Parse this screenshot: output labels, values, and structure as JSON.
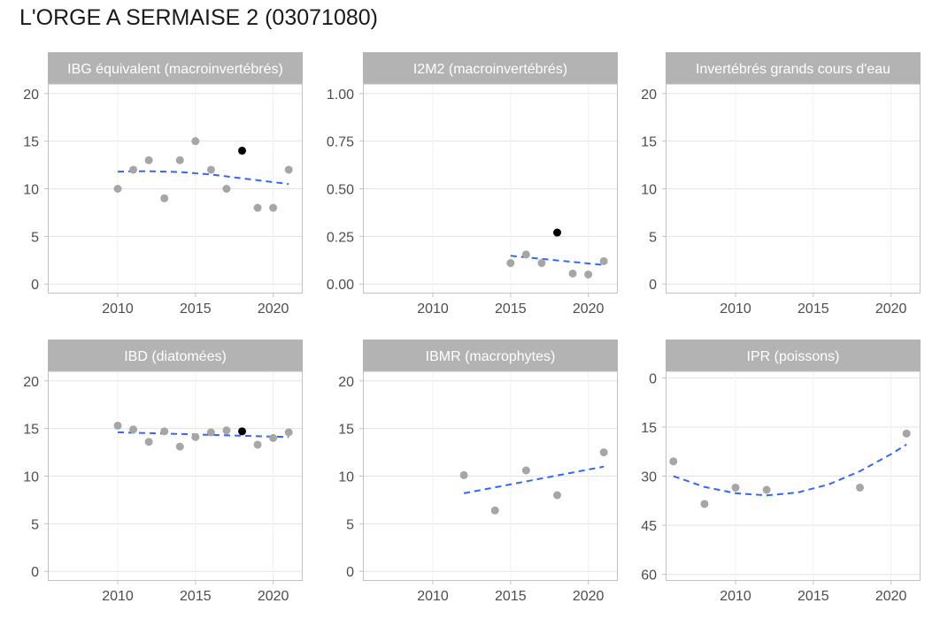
{
  "page": {
    "title": "L'ORGE A SERMAISE 2 (03071080)"
  },
  "chart_data": [
    {
      "type": "scatter",
      "title": "IBG équivalent (macroinvertébrés)",
      "xlim": [
        2005.5,
        2021.9
      ],
      "ylim": [
        -1,
        21
      ],
      "xticks": [
        2010,
        2015,
        2020
      ],
      "yticks": [
        0,
        5,
        10,
        15,
        20
      ],
      "ytick_labels": [
        "0",
        "5",
        "10",
        "15",
        "20"
      ],
      "reverse_y": false,
      "grid": true,
      "points": [
        {
          "x": 2010,
          "y": 10
        },
        {
          "x": 2011,
          "y": 12
        },
        {
          "x": 2012,
          "y": 13
        },
        {
          "x": 2013,
          "y": 9
        },
        {
          "x": 2014,
          "y": 13
        },
        {
          "x": 2015,
          "y": 15
        },
        {
          "x": 2016,
          "y": 12
        },
        {
          "x": 2017,
          "y": 10
        },
        {
          "x": 2018,
          "y": 14,
          "highlight": true
        },
        {
          "x": 2019,
          "y": 8
        },
        {
          "x": 2020,
          "y": 8
        },
        {
          "x": 2021,
          "y": 12
        }
      ],
      "trend": [
        {
          "x": 2010,
          "y": 11.8
        },
        {
          "x": 2012,
          "y": 11.85
        },
        {
          "x": 2014,
          "y": 11.75
        },
        {
          "x": 2016,
          "y": 11.5
        },
        {
          "x": 2018,
          "y": 11.1
        },
        {
          "x": 2020,
          "y": 10.7
        },
        {
          "x": 2021,
          "y": 10.5
        }
      ],
      "colors": {
        "point": "#a6a6a6",
        "highlight": "#000000",
        "trend": "#3366ff"
      }
    },
    {
      "type": "scatter",
      "title": "I2M2 (macroinvertébrés)",
      "xlim": [
        2005.5,
        2021.9
      ],
      "ylim": [
        -0.05,
        1.05
      ],
      "xticks": [
        2010,
        2015,
        2020
      ],
      "yticks": [
        0,
        0.25,
        0.5,
        0.75,
        1
      ],
      "ytick_labels": [
        "0.00",
        "0.25",
        "0.50",
        "0.75",
        "1.00"
      ],
      "reverse_y": false,
      "grid": true,
      "points": [
        {
          "x": 2015,
          "y": 0.11
        },
        {
          "x": 2016,
          "y": 0.155
        },
        {
          "x": 2017,
          "y": 0.11
        },
        {
          "x": 2018,
          "y": 0.27,
          "highlight": true
        },
        {
          "x": 2019,
          "y": 0.055
        },
        {
          "x": 2020,
          "y": 0.05
        },
        {
          "x": 2021,
          "y": 0.12
        }
      ],
      "trend": [
        {
          "x": 2015,
          "y": 0.148
        },
        {
          "x": 2021,
          "y": 0.1
        }
      ],
      "colors": {
        "point": "#a6a6a6",
        "highlight": "#000000",
        "trend": "#3366ff"
      }
    },
    {
      "type": "scatter",
      "title": "Invertébrés grands cours d'eau",
      "xlim": [
        2005.5,
        2021.9
      ],
      "ylim": [
        -1,
        21
      ],
      "xticks": [
        2010,
        2015,
        2020
      ],
      "yticks": [
        0,
        5,
        10,
        15,
        20
      ],
      "ytick_labels": [
        "0",
        "5",
        "10",
        "15",
        "20"
      ],
      "reverse_y": false,
      "grid": true,
      "points": [],
      "trend": [],
      "colors": {
        "point": "#a6a6a6",
        "highlight": "#000000",
        "trend": "#3366ff"
      }
    },
    {
      "type": "scatter",
      "title": "IBD (diatomées)",
      "xlim": [
        2005.5,
        2021.9
      ],
      "ylim": [
        -1,
        21
      ],
      "xticks": [
        2010,
        2015,
        2020
      ],
      "yticks": [
        0,
        5,
        10,
        15,
        20
      ],
      "ytick_labels": [
        "0",
        "5",
        "10",
        "15",
        "20"
      ],
      "reverse_y": false,
      "grid": true,
      "points": [
        {
          "x": 2010,
          "y": 15.3
        },
        {
          "x": 2011,
          "y": 14.9
        },
        {
          "x": 2012,
          "y": 13.6
        },
        {
          "x": 2013,
          "y": 14.7
        },
        {
          "x": 2014,
          "y": 13.1
        },
        {
          "x": 2015,
          "y": 14.1
        },
        {
          "x": 2016,
          "y": 14.6
        },
        {
          "x": 2017,
          "y": 14.8
        },
        {
          "x": 2018,
          "y": 14.7,
          "highlight": true
        },
        {
          "x": 2019,
          "y": 13.3
        },
        {
          "x": 2020,
          "y": 14.0
        },
        {
          "x": 2021,
          "y": 14.6
        }
      ],
      "trend": [
        {
          "x": 2010,
          "y": 14.6
        },
        {
          "x": 2021,
          "y": 14.1
        }
      ],
      "colors": {
        "point": "#a6a6a6",
        "highlight": "#000000",
        "trend": "#3366ff"
      }
    },
    {
      "type": "scatter",
      "title": "IBMR (macrophytes)",
      "xlim": [
        2005.5,
        2021.9
      ],
      "ylim": [
        -1,
        21
      ],
      "xticks": [
        2010,
        2015,
        2020
      ],
      "yticks": [
        0,
        5,
        10,
        15,
        20
      ],
      "ytick_labels": [
        "0",
        "5",
        "10",
        "15",
        "20"
      ],
      "reverse_y": false,
      "grid": true,
      "points": [
        {
          "x": 2012,
          "y": 10.1
        },
        {
          "x": 2014,
          "y": 6.4
        },
        {
          "x": 2016,
          "y": 10.6
        },
        {
          "x": 2018,
          "y": 8.0
        },
        {
          "x": 2021,
          "y": 12.5
        }
      ],
      "trend": [
        {
          "x": 2012,
          "y": 8.2
        },
        {
          "x": 2021,
          "y": 11.0
        }
      ],
      "colors": {
        "point": "#a6a6a6",
        "highlight": "#000000",
        "trend": "#3366ff"
      }
    },
    {
      "type": "scatter",
      "title": "IPR (poissons)",
      "xlim": [
        2005.5,
        2021.9
      ],
      "ylim": [
        -2,
        62
      ],
      "xticks": [
        2010,
        2015,
        2020
      ],
      "yticks": [
        0,
        15,
        30,
        45,
        60
      ],
      "ytick_labels": [
        "0",
        "15",
        "30",
        "45",
        "60"
      ],
      "reverse_y": true,
      "grid": true,
      "points": [
        {
          "x": 2006,
          "y": 25.5
        },
        {
          "x": 2008,
          "y": 38.5
        },
        {
          "x": 2010,
          "y": 33.5
        },
        {
          "x": 2012,
          "y": 34.2
        },
        {
          "x": 2018,
          "y": 33.5
        },
        {
          "x": 2021,
          "y": 17.0
        }
      ],
      "trend": [
        {
          "x": 2006,
          "y": 30
        },
        {
          "x": 2008,
          "y": 33.3
        },
        {
          "x": 2010,
          "y": 35.2
        },
        {
          "x": 2012,
          "y": 35.9
        },
        {
          "x": 2014,
          "y": 35.0
        },
        {
          "x": 2016,
          "y": 32.5
        },
        {
          "x": 2018,
          "y": 28.5
        },
        {
          "x": 2020,
          "y": 23.3
        },
        {
          "x": 2021,
          "y": 20.3
        }
      ],
      "colors": {
        "point": "#a6a6a6",
        "highlight": "#000000",
        "trend": "#3366ff"
      }
    }
  ]
}
